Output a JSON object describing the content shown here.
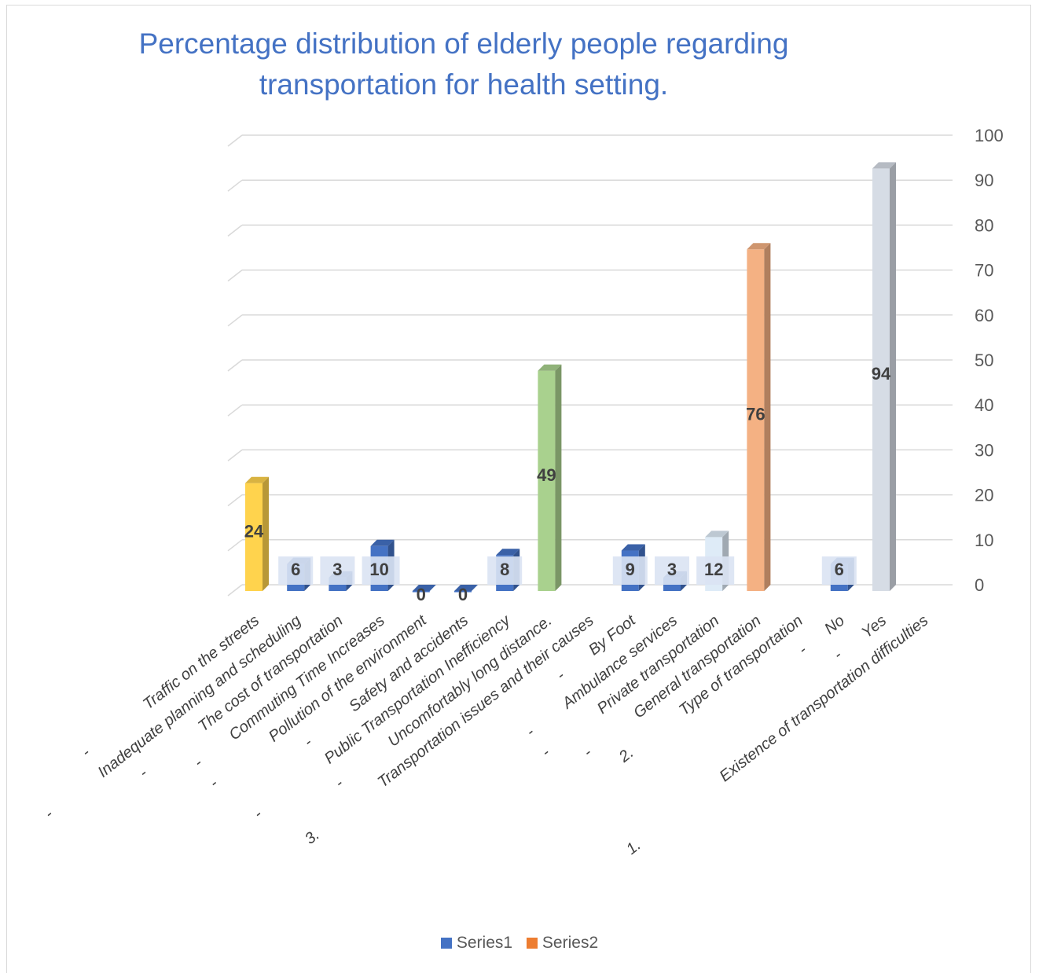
{
  "chart_data": {
    "type": "bar",
    "title": "Percentage distribution of elderly people regarding transportation for health setting.",
    "y_axis": {
      "min": 0,
      "max": 100,
      "step": 10,
      "ticks": [
        "0",
        "10",
        "20",
        "30",
        "40",
        "50",
        "60",
        "70",
        "80",
        "90",
        "100"
      ],
      "position": "right",
      "grid": true
    },
    "categories": [
      {
        "label": "Traffic on the streets",
        "prefix": "-"
      },
      {
        "label": "Inadequate planning and scheduling",
        "prefix": "-"
      },
      {
        "label": "The cost of transportation",
        "prefix": "-"
      },
      {
        "label": "Commuting Time Increases",
        "prefix": "-"
      },
      {
        "label": "Pollution of the environment",
        "prefix": "-"
      },
      {
        "label": "Safety and accidents",
        "prefix": "-"
      },
      {
        "label": "Public Transportation Inefficiency",
        "prefix": "-"
      },
      {
        "label": "Uncomfortably long distance.",
        "prefix": "-"
      },
      {
        "label": "Transportation issues and their causes",
        "prefix": "3."
      },
      {
        "label": "By Foot",
        "prefix": "-"
      },
      {
        "label": "Ambulance services",
        "prefix": "-"
      },
      {
        "label": "Private transportation",
        "prefix": "-"
      },
      {
        "label": "General transportation",
        "prefix": "-"
      },
      {
        "label": "Type of transportation",
        "prefix": "2."
      },
      {
        "label": "No",
        "prefix": "-"
      },
      {
        "label": "Yes",
        "prefix": "-"
      },
      {
        "label": "Existence of transportation difficulties",
        "prefix": "1."
      }
    ],
    "values": [
      24,
      6,
      3,
      10,
      0,
      0,
      8,
      49,
      null,
      9,
      3,
      12,
      76,
      null,
      6,
      94,
      null
    ],
    "data_labels": [
      "24",
      "6",
      "3",
      "10",
      "0",
      "0",
      "8",
      "49",
      "",
      "9",
      "3",
      "12",
      "76",
      "",
      "6",
      "94",
      ""
    ],
    "bar_colors": [
      "#ffd34d",
      "#4472c4",
      "#4472c4",
      "#4472c4",
      "#4472c4",
      "#4472c4",
      "#4472c4",
      "#a9d18e",
      null,
      "#4472c4",
      "#4472c4",
      "#deebf7",
      "#f4b183",
      null,
      "#4472c4",
      "#d6dce5",
      null
    ],
    "series": [
      {
        "name": "Series1",
        "color": "#4472c4"
      },
      {
        "name": "Series2",
        "color": "#ed7d31"
      }
    ],
    "legend_placement": "bottom"
  }
}
